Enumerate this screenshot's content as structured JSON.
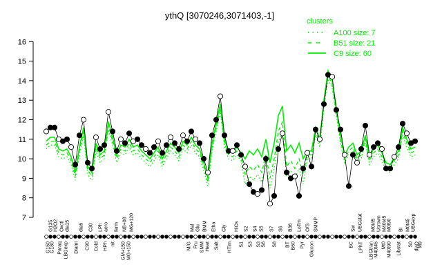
{
  "chart_data": {
    "type": "line",
    "title": "ythQ [3070246,3071403,-1]",
    "xlabel": "",
    "ylabel": "",
    "ylim": [
      7,
      16
    ],
    "yticks": [
      7,
      8,
      9,
      10,
      11,
      12,
      13,
      14,
      15,
      16
    ],
    "legend": {
      "title": "clusters",
      "placement": "top-right",
      "entries": [
        {
          "label": "A100 size: 7",
          "style": "dotted"
        },
        {
          "label": "B51 size: 21",
          "style": "dashed"
        },
        {
          "label": "C9 size: 60",
          "style": "solid"
        }
      ],
      "color": "#00ee00"
    },
    "profile": {
      "name": "ythQ",
      "color": "#000000",
      "values": [
        11.4,
        11.6,
        11.6,
        11.0,
        10.9,
        11.0,
        10.6,
        9.7,
        11.2,
        12.0,
        9.8,
        9.5,
        11.1,
        10.5,
        10.7,
        12.4,
        11.4,
        10.4,
        11.0,
        10.8,
        11.3,
        10.9,
        11.0,
        10.7,
        10.5,
        10.3,
        10.6,
        10.9,
        10.3,
        10.7,
        11.1,
        10.8,
        10.5,
        11.2,
        10.9,
        11.4,
        11.0,
        10.8,
        10.0,
        9.3,
        11.2,
        12.0,
        13.2,
        11.2,
        10.4,
        10.4,
        10.7,
        10.2,
        9.6,
        8.7,
        8.3,
        8.2,
        8.4,
        10.0,
        7.7,
        8.1,
        10.5,
        11.3,
        9.3,
        9.0,
        9.1,
        8.1,
        9.5,
        10.3,
        9.6,
        11.5,
        11.0,
        12.8,
        14.3,
        14.2,
        12.5,
        11.5,
        10.2,
        8.6,
        10.2,
        9.8,
        10.5,
        11.7,
        10.2,
        10.6,
        10.8,
        10.5,
        9.5,
        9.5,
        10.1,
        10.6,
        11.8,
        11.3,
        10.8,
        10.9
      ]
    },
    "series": [
      {
        "name": "C9",
        "style": "solid",
        "values": [
          10.9,
          11.1,
          11.1,
          10.5,
          10.4,
          10.5,
          10.1,
          9.3,
          10.6,
          11.6,
          9.6,
          9.3,
          10.8,
          10.2,
          10.4,
          11.9,
          11.1,
          10.2,
          10.7,
          10.6,
          11.0,
          10.6,
          10.7,
          10.4,
          10.2,
          10.0,
          10.3,
          10.6,
          10.0,
          10.4,
          10.8,
          10.6,
          10.3,
          10.9,
          10.7,
          11.1,
          10.7,
          10.5,
          9.8,
          9.0,
          10.8,
          11.8,
          12.8,
          11.0,
          10.4,
          10.3,
          10.6,
          10.3,
          10.0,
          10.4,
          10.2,
          10.5,
          10.1,
          11.0,
          9.8,
          10.8,
          12.2,
          12.7,
          10.4,
          10.7,
          10.3,
          10.8,
          10.0,
          10.4,
          10.4,
          11.6,
          11.0,
          13.0,
          14.5,
          14.0,
          12.6,
          11.2,
          10.2,
          10.6,
          10.8,
          10.2,
          10.4,
          11.2,
          10.1,
          10.5,
          10.7,
          10.3,
          9.8,
          9.7,
          10.1,
          10.4,
          11.6,
          11.0,
          10.5,
          10.6
        ]
      },
      {
        "name": "B51",
        "style": "dashed",
        "values": [
          10.7,
          10.9,
          10.9,
          10.3,
          10.2,
          10.3,
          9.9,
          9.1,
          10.4,
          11.4,
          9.4,
          9.1,
          10.6,
          10.0,
          10.2,
          11.7,
          10.9,
          10.0,
          10.5,
          10.4,
          10.8,
          10.4,
          10.5,
          10.2,
          10.0,
          9.8,
          10.1,
          10.4,
          9.8,
          10.2,
          10.6,
          10.4,
          10.1,
          10.7,
          10.5,
          10.9,
          10.5,
          10.3,
          9.6,
          8.8,
          10.6,
          11.6,
          12.6,
          10.8,
          10.2,
          10.1,
          10.4,
          10.1,
          9.2,
          9.6,
          9.4,
          9.7,
          9.3,
          10.2,
          9.0,
          10.0,
          11.4,
          11.9,
          9.6,
          9.9,
          9.5,
          10.0,
          9.2,
          10.2,
          10.2,
          11.4,
          10.8,
          12.8,
          14.3,
          13.8,
          12.4,
          11.0,
          10.0,
          10.4,
          10.6,
          10.0,
          10.2,
          11.0,
          9.9,
          10.3,
          10.5,
          10.1,
          9.6,
          9.5,
          9.9,
          10.2,
          11.4,
          10.8,
          10.3,
          10.4
        ]
      },
      {
        "name": "A100",
        "style": "dotted",
        "values": [
          10.5,
          10.7,
          10.7,
          10.1,
          10.0,
          10.1,
          9.7,
          8.9,
          10.2,
          11.2,
          9.2,
          8.9,
          10.4,
          9.8,
          10.0,
          11.5,
          10.7,
          9.8,
          10.3,
          10.2,
          10.6,
          10.2,
          10.3,
          10.0,
          9.8,
          9.6,
          9.9,
          10.2,
          9.6,
          10.0,
          10.4,
          10.2,
          9.9,
          10.5,
          10.3,
          10.7,
          10.3,
          10.1,
          9.4,
          8.6,
          10.4,
          11.4,
          12.4,
          10.6,
          10.0,
          9.9,
          10.2,
          9.9,
          8.7,
          9.1,
          8.9,
          9.2,
          8.8,
          9.7,
          8.5,
          9.5,
          10.9,
          11.4,
          9.1,
          9.4,
          9.0,
          9.5,
          8.7,
          10.0,
          10.0,
          11.2,
          10.6,
          12.6,
          14.1,
          13.6,
          12.2,
          10.8,
          9.8,
          10.2,
          10.4,
          9.8,
          10.0,
          10.8,
          9.7,
          10.1,
          10.3,
          9.9,
          9.4,
          9.3,
          9.7,
          10.0,
          11.2,
          10.6,
          10.1,
          10.2
        ]
      }
    ],
    "condition_labels": [
      {
        "text": "G150",
        "at": 0.3,
        "side": "bottom"
      },
      {
        "text": "G180",
        "at": 1.3,
        "side": "bottom"
      },
      {
        "text": "Paraq",
        "at": 3.2,
        "side": "bottom"
      },
      {
        "text": "LBGexp",
        "at": 4.7,
        "side": "bottom"
      },
      {
        "text": "Diami",
        "at": 7.2,
        "side": "bottom"
      },
      {
        "text": "C90",
        "at": 9.8,
        "side": "bottom"
      },
      {
        "text": "Cold",
        "at": 12,
        "side": "bottom"
      },
      {
        "text": "HPh",
        "at": 14.2,
        "side": "bottom"
      },
      {
        "text": "nit",
        "at": 16,
        "side": "bottom"
      },
      {
        "text": "GM+150",
        "at": 18.5,
        "side": "bottom"
      },
      {
        "text": "MG+150",
        "at": 19.8,
        "side": "bottom"
      },
      {
        "text": "M/G",
        "at": 34.3,
        "side": "bottom"
      },
      {
        "text": "Fru",
        "at": 36,
        "side": "bottom"
      },
      {
        "text": "SMM",
        "at": 37.5,
        "side": "bottom"
      },
      {
        "text": "Heat",
        "at": 38.8,
        "side": "bottom"
      },
      {
        "text": "Salt",
        "at": 41,
        "side": "bottom"
      },
      {
        "text": "HTim",
        "at": 44.2,
        "side": "bottom"
      },
      {
        "text": "S1",
        "at": 47,
        "side": "bottom"
      },
      {
        "text": "S3",
        "at": 49.2,
        "side": "bottom"
      },
      {
        "text": "S3",
        "at": 51.2,
        "side": "bottom"
      },
      {
        "text": "S6",
        "at": 52.3,
        "side": "bottom"
      },
      {
        "text": "S8",
        "at": 55,
        "side": "bottom"
      },
      {
        "text": "BT",
        "at": 58.2,
        "side": "bottom"
      },
      {
        "text": "B60",
        "at": 59.5,
        "side": "bottom"
      },
      {
        "text": "Pyr",
        "at": 61.7,
        "side": "bottom"
      },
      {
        "text": "Glucon",
        "at": 64,
        "side": "bottom"
      },
      {
        "text": "BC",
        "at": 73.5,
        "side": "bottom"
      },
      {
        "text": "LPhT",
        "at": 75.8,
        "side": "bottom"
      },
      {
        "text": "LBGtran",
        "at": 78.3,
        "side": "bottom"
      },
      {
        "text": "M40t45",
        "at": 79.5,
        "side": "bottom"
      },
      {
        "text": "Mt0",
        "at": 81.3,
        "side": "bottom"
      },
      {
        "text": "M40t90",
        "at": 82.7,
        "side": "bottom"
      },
      {
        "text": "Libstat",
        "at": 85,
        "side": "bottom"
      },
      {
        "text": "S0",
        "at": 87.8,
        "side": "bottom"
      },
      {
        "text": "dlaD",
        "at": 89.3,
        "side": "bottom"
      },
      {
        "text": "M9",
        "at": 90.2,
        "side": "bottom"
      },
      {
        "text": "G135",
        "at": 1,
        "side": "top"
      },
      {
        "text": "H2O2",
        "at": 2.2,
        "side": "top"
      },
      {
        "text": "Oxctl",
        "at": 3.7,
        "side": "top"
      },
      {
        "text": "dia15",
        "at": 5,
        "side": "top"
      },
      {
        "text": "dia5",
        "at": 8.3,
        "side": "top"
      },
      {
        "text": "C30",
        "at": 10.7,
        "side": "top"
      },
      {
        "text": "LPh",
        "at": 13,
        "side": "top"
      },
      {
        "text": "aero",
        "at": 14.3,
        "side": "top"
      },
      {
        "text": "ferm",
        "at": 16.8,
        "side": "top"
      },
      {
        "text": "NB+08",
        "at": 18.8,
        "side": "top"
      },
      {
        "text": "MG+120",
        "at": 20.5,
        "side": "top"
      },
      {
        "text": "Mal",
        "at": 35.2,
        "side": "top"
      },
      {
        "text": "Glu",
        "at": 36.5,
        "side": "top"
      },
      {
        "text": "BMM",
        "at": 38.2,
        "side": "top"
      },
      {
        "text": "Etha",
        "at": 40.3,
        "side": "top"
      },
      {
        "text": "Gly",
        "at": 42.8,
        "side": "top"
      },
      {
        "text": "HiOs",
        "at": 45.8,
        "side": "top"
      },
      {
        "text": "S2",
        "at": 48.2,
        "side": "top"
      },
      {
        "text": "S4",
        "at": 50.3,
        "side": "top"
      },
      {
        "text": "S5",
        "at": 51.8,
        "side": "top"
      },
      {
        "text": "S7",
        "at": 54.3,
        "side": "top"
      },
      {
        "text": "S6",
        "at": 56.5,
        "side": "top"
      },
      {
        "text": "B36",
        "at": 58.8,
        "side": "top"
      },
      {
        "text": "LoTm",
        "at": 61,
        "side": "top"
      },
      {
        "text": "O/S",
        "at": 63,
        "side": "top"
      },
      {
        "text": "SMMP",
        "at": 65,
        "side": "top"
      },
      {
        "text": "Sw",
        "at": 74,
        "side": "top"
      },
      {
        "text": "UBGstat",
        "at": 75.7,
        "side": "top"
      },
      {
        "text": "M0t45",
        "at": 78.8,
        "side": "top"
      },
      {
        "text": "Ucrown",
        "at": 80.2,
        "side": "top"
      },
      {
        "text": "M40t45",
        "at": 81.5,
        "side": "top"
      },
      {
        "text": "M0t90",
        "at": 82.7,
        "side": "top"
      },
      {
        "text": "BI",
        "at": 85.5,
        "side": "top"
      },
      {
        "text": "M0t45",
        "at": 87.2,
        "side": "top"
      },
      {
        "text": "UBGexp",
        "at": 88.5,
        "side": "top"
      }
    ]
  }
}
